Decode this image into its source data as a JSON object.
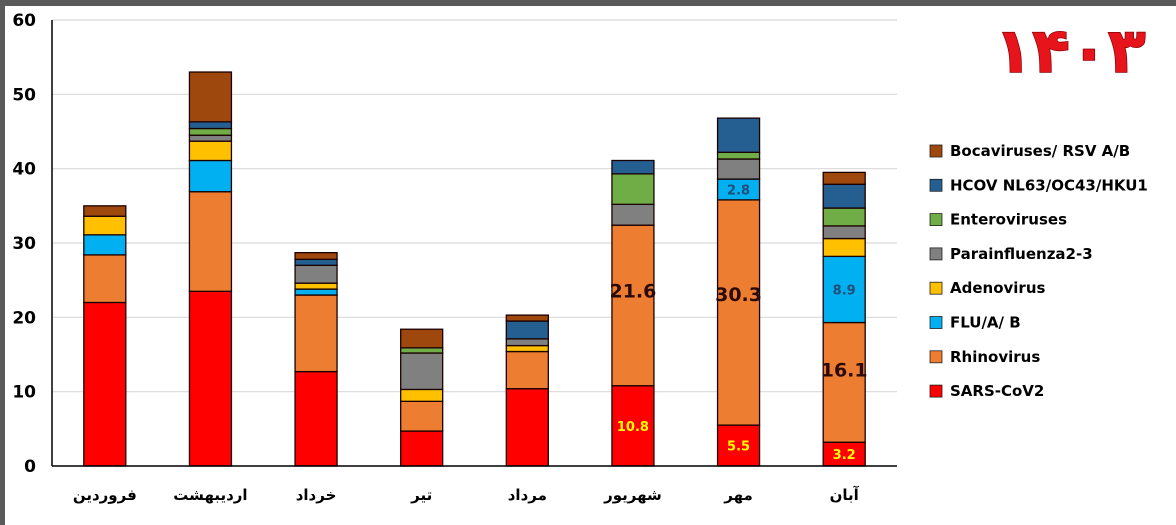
{
  "chart_data": {
    "type": "stacked-bar",
    "title": "۱۴۰۳",
    "xlabel": "",
    "ylabel": "",
    "ylim": [
      0,
      60
    ],
    "yticks": [
      0,
      10,
      20,
      30,
      40,
      50,
      60
    ],
    "grid": true,
    "legend": "right",
    "categories": [
      "فروردین",
      "اردیبهشت",
      "خرداد",
      "تیر",
      "مرداد",
      "شهریور",
      "مهر",
      "آبان"
    ],
    "series": [
      {
        "name": "SARS-CoV2",
        "color": "#ff0000",
        "values": [
          22.0,
          23.5,
          12.7,
          4.7,
          10.4,
          10.8,
          5.5,
          3.2
        ],
        "labels": [
          null,
          null,
          null,
          null,
          null,
          "10.8",
          "5.5",
          "3.2"
        ],
        "label_color": "#ffff00"
      },
      {
        "name": "Rhinovirus",
        "color": "#ed7d31",
        "values": [
          6.4,
          13.4,
          10.3,
          4.0,
          5.0,
          21.6,
          30.3,
          16.1
        ],
        "labels": [
          null,
          null,
          null,
          null,
          null,
          "21.6",
          "30.3",
          "16.1"
        ],
        "label_color": "#2a0a0a"
      },
      {
        "name": "FLU/A/ B",
        "color": "#00b0f0",
        "values": [
          2.7,
          4.2,
          0.8,
          0,
          0,
          0,
          2.8,
          8.9
        ],
        "labels": [
          null,
          null,
          null,
          null,
          null,
          null,
          "2.8",
          "8.9"
        ],
        "label_color": "#1f4e79"
      },
      {
        "name": "Adenovirus",
        "color": "#ffc000",
        "values": [
          2.5,
          2.6,
          0.8,
          1.6,
          0.8,
          0,
          0,
          2.4
        ]
      },
      {
        "name": "Parainfluenza2-3",
        "color": "#808080",
        "values": [
          0,
          0.8,
          2.4,
          4.9,
          0.9,
          2.8,
          2.7,
          1.7
        ]
      },
      {
        "name": "Enteroviruses",
        "color": "#70ad47",
        "values": [
          0,
          0.9,
          0,
          0.7,
          0,
          4.1,
          0.9,
          2.4
        ]
      },
      {
        "name": "HCOV NL63/OC43/HKU1",
        "color": "#255e91",
        "values": [
          0,
          0.9,
          0.8,
          0,
          2.4,
          1.8,
          4.6,
          3.2
        ]
      },
      {
        "name": "Bocaviruses/ RSV A/B",
        "color": "#9e480e",
        "values": [
          1.4,
          6.7,
          0.9,
          2.5,
          0.8,
          0,
          0,
          1.6
        ]
      }
    ]
  }
}
